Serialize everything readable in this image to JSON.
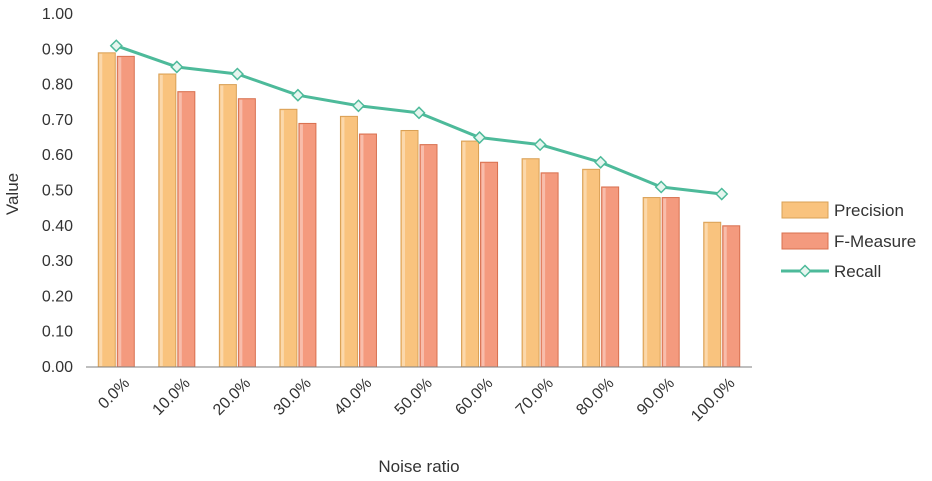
{
  "colors": {
    "precision_fill": "#f9c37e",
    "precision_stroke": "#d9a055",
    "fmeasure_fill": "#f49a7e",
    "fmeasure_stroke": "#d8704f",
    "recall_line": "#4dba9a",
    "recall_marker_fill": "#e6f6ef",
    "axis": "#7f7f7f"
  },
  "chart_data": {
    "type": "bar",
    "title": "",
    "xlabel": "Noise ratio",
    "ylabel": "Value",
    "categories": [
      "0.0%",
      "10.0%",
      "20.0%",
      "30.0%",
      "40.0%",
      "50.0%",
      "60.0%",
      "70.0%",
      "80.0%",
      "90.0%",
      "100.0%"
    ],
    "ylim": [
      0,
      1.0
    ],
    "yticks": [
      "0.00",
      "0.10",
      "0.20",
      "0.30",
      "0.40",
      "0.50",
      "0.60",
      "0.70",
      "0.80",
      "0.90",
      "1.00"
    ],
    "grid": false,
    "legend_position": "right",
    "series": [
      {
        "name": "Precision",
        "kind": "bar",
        "values": [
          0.89,
          0.83,
          0.8,
          0.73,
          0.71,
          0.67,
          0.64,
          0.59,
          0.56,
          0.48,
          0.41
        ]
      },
      {
        "name": "F-Measure",
        "kind": "bar",
        "values": [
          0.88,
          0.78,
          0.76,
          0.69,
          0.66,
          0.63,
          0.58,
          0.55,
          0.51,
          0.48,
          0.4
        ]
      },
      {
        "name": "Recall",
        "kind": "line",
        "marker": "diamond",
        "values": [
          0.91,
          0.85,
          0.83,
          0.77,
          0.74,
          0.72,
          0.65,
          0.63,
          0.58,
          0.51,
          0.49
        ]
      }
    ]
  }
}
